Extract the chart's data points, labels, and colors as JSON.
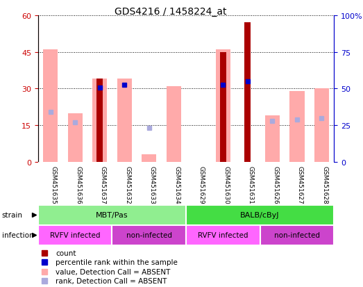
{
  "title": "GDS4216 / 1458224_at",
  "samples": [
    "GSM451635",
    "GSM451636",
    "GSM451637",
    "GSM451632",
    "GSM451633",
    "GSM451634",
    "GSM451629",
    "GSM451630",
    "GSM451631",
    "GSM451626",
    "GSM451627",
    "GSM451628"
  ],
  "count_values": [
    0,
    0,
    34,
    0,
    0,
    0,
    0,
    45,
    57,
    0,
    0,
    0
  ],
  "percentile_values": [
    0,
    0,
    30.5,
    31.5,
    0,
    0,
    0,
    31.5,
    33,
    0,
    0,
    0
  ],
  "pink_bar_values": [
    46,
    20,
    34,
    34,
    3,
    31,
    0,
    46,
    0,
    19,
    29,
    30
  ],
  "blue_square_values": [
    34,
    27,
    0,
    0,
    23,
    0,
    0,
    0,
    0,
    28,
    29,
    30
  ],
  "ylim_left": [
    0,
    60
  ],
  "ylim_right": [
    0,
    100
  ],
  "yticks_left": [
    0,
    15,
    30,
    45,
    60
  ],
  "yticks_right": [
    0,
    25,
    50,
    75,
    100
  ],
  "strain_groups": [
    {
      "label": "MBT/Pas",
      "start": 0,
      "end": 6,
      "color": "#90EE90"
    },
    {
      "label": "BALB/cByJ",
      "start": 6,
      "end": 12,
      "color": "#44DD44"
    }
  ],
  "infection_groups": [
    {
      "label": "RVFV infected",
      "start": 0,
      "end": 3,
      "color": "#FF66FF"
    },
    {
      "label": "non-infected",
      "start": 3,
      "end": 6,
      "color": "#CC44CC"
    },
    {
      "label": "RVFV infected",
      "start": 6,
      "end": 9,
      "color": "#FF66FF"
    },
    {
      "label": "non-infected",
      "start": 9,
      "end": 12,
      "color": "#CC44CC"
    }
  ],
  "count_color": "#AA0000",
  "percentile_color": "#0000CC",
  "pink_color": "#FFAAAA",
  "blue_sq_color": "#AAAADD",
  "bg_color": "#FFFFFF",
  "left_axis_color": "#CC0000",
  "right_axis_color": "#0000CC",
  "grid_color": "#000000",
  "tick_bg_color": "#C0C0C0"
}
